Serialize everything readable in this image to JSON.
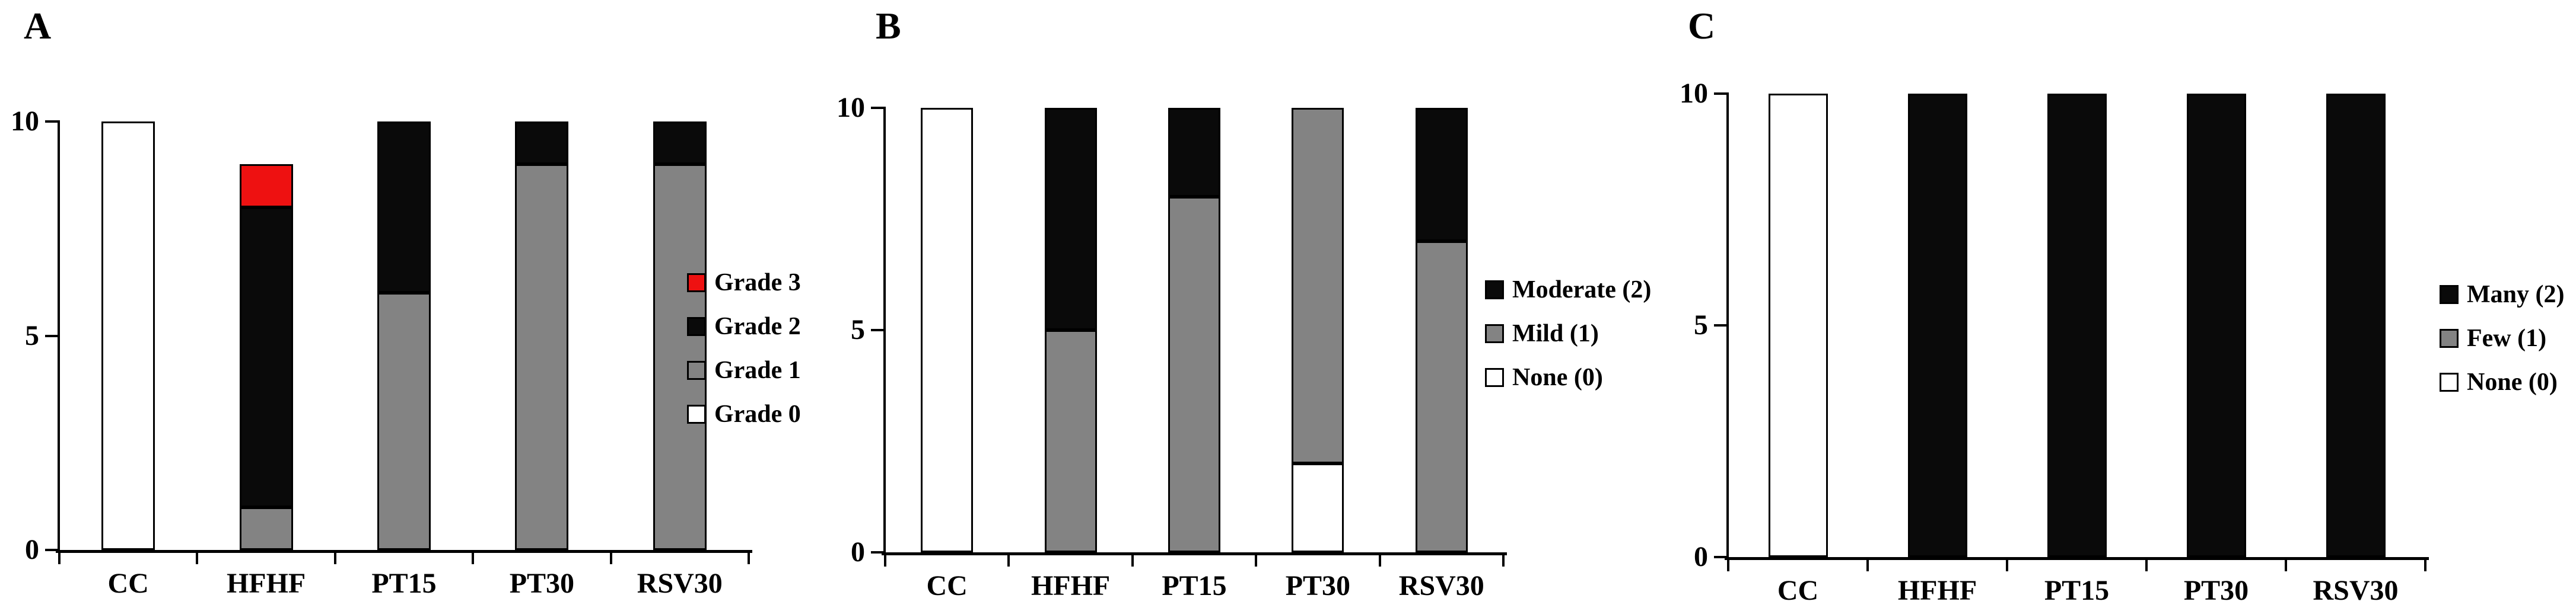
{
  "chart_data": [
    {
      "panel_letter": "A",
      "type": "bar",
      "stacked": true,
      "categories": [
        "CC",
        "HFHF",
        "PT15",
        "PT30",
        "RSV30"
      ],
      "ylim": [
        0,
        10
      ],
      "yticks": [
        "0",
        "5",
        "10"
      ],
      "grid": false,
      "legend_position": "right",
      "series": [
        {
          "name": "Grade 0",
          "color": "#ffffff",
          "values": [
            10,
            0,
            0,
            0,
            0
          ]
        },
        {
          "name": "Grade 1",
          "color": "#838383",
          "values": [
            0,
            1,
            6,
            9,
            9
          ]
        },
        {
          "name": "Grade 2",
          "color": "#0a0a0a",
          "values": [
            0,
            7,
            4,
            1,
            1
          ]
        },
        {
          "name": "Grade 3",
          "color": "#ee1111",
          "values": [
            0,
            1,
            0,
            0,
            0
          ]
        }
      ],
      "legend_order": [
        "Grade 3",
        "Grade 2",
        "Grade 1",
        "Grade 0"
      ]
    },
    {
      "panel_letter": "B",
      "type": "bar",
      "stacked": true,
      "categories": [
        "CC",
        "HFHF",
        "PT15",
        "PT30",
        "RSV30"
      ],
      "ylim": [
        0,
        10
      ],
      "yticks": [
        "0",
        "5",
        "10"
      ],
      "grid": false,
      "legend_position": "right",
      "series": [
        {
          "name": "None (0)",
          "color": "#ffffff",
          "values": [
            10,
            0,
            0,
            2,
            0
          ]
        },
        {
          "name": "Mild (1)",
          "color": "#838383",
          "values": [
            0,
            5,
            8,
            8,
            7
          ]
        },
        {
          "name": "Moderate (2)",
          "color": "#0a0a0a",
          "values": [
            0,
            5,
            2,
            0,
            3
          ]
        }
      ],
      "legend_order": [
        "Moderate (2)",
        "Mild (1)",
        "None (0)"
      ]
    },
    {
      "panel_letter": "C",
      "type": "bar",
      "stacked": true,
      "categories": [
        "CC",
        "HFHF",
        "PT15",
        "PT30",
        "RSV30"
      ],
      "ylim": [
        0,
        10
      ],
      "yticks": [
        "0",
        "5",
        "10"
      ],
      "grid": false,
      "legend_position": "right",
      "series": [
        {
          "name": "None (0)",
          "color": "#ffffff",
          "values": [
            10,
            0,
            0,
            0,
            0
          ]
        },
        {
          "name": "Few (1)",
          "color": "#838383",
          "values": [
            0,
            0,
            0,
            0,
            0
          ]
        },
        {
          "name": "Many (2)",
          "color": "#0a0a0a",
          "values": [
            0,
            10,
            10,
            10,
            10
          ]
        }
      ],
      "legend_order": [
        "Many (2)",
        "Few (1)",
        "None (0)"
      ]
    }
  ],
  "colors": {
    "bar_black": "#0a0a0a",
    "bar_gray": "#838383",
    "bar_white": "#ffffff",
    "bar_red": "#ee1111",
    "axis": "#000000",
    "background": "#ffffff"
  }
}
